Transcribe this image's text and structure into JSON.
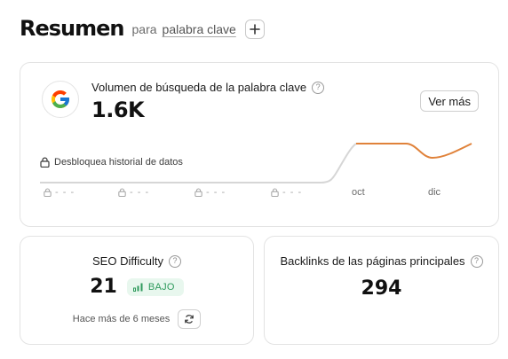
{
  "header": {
    "title": "Resumen",
    "para": "para",
    "keyword": "palabra clave"
  },
  "search_volume": {
    "title": "Volumen de búsqueda de la palabra clave",
    "value": "1.6K",
    "button": "Ver más",
    "unlock_text": "Desbloquea historial de datos",
    "locked_label": "- - -",
    "icons": {
      "logo": "google-logo",
      "help": "question-icon",
      "lock": "lock-icon"
    },
    "chart_data": {
      "type": "line",
      "x_labels": [
        "",
        "",
        "",
        "",
        "oct",
        "dic"
      ],
      "locked_periods": 4,
      "colors": {
        "locked": "#d6d6d6",
        "line": "#e0823a"
      }
    }
  },
  "seo": {
    "title": "SEO Difficulty",
    "value": "21",
    "badge": "BAJO",
    "updated": "Hace más de 6 meses",
    "colors": {
      "badge_bg": "#e8f7ee",
      "badge_text": "#2e9a5c"
    }
  },
  "backlinks": {
    "title": "Backlinks de las páginas principales",
    "value": "294"
  }
}
